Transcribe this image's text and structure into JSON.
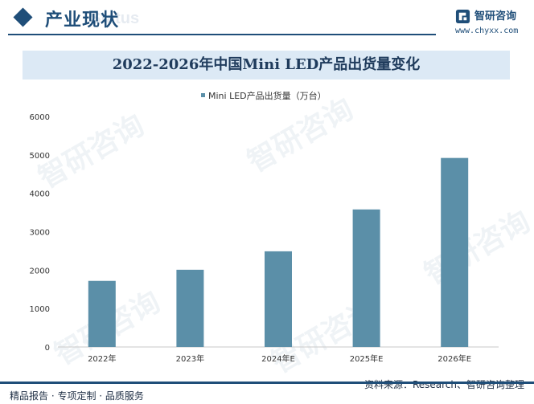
{
  "header": {
    "title": "产业现状",
    "bg_text": "Status",
    "logo_name": "智研咨询",
    "logo_url": "www.chyxx.com"
  },
  "watermark_text": "智研咨询",
  "colors": {
    "brand": "#1f4e79",
    "bar": "#5b8fa8",
    "title_bg": "#dce9f5"
  },
  "chart_data": {
    "type": "bar",
    "title": "2022-2026年中国Mini LED产品出货量变化",
    "legend_label": "Mini LED产品出货量（万台）",
    "legend_position": "top-center",
    "categories": [
      "2022年",
      "2023年",
      "2024年E",
      "2025年E",
      "2026年E"
    ],
    "series": [
      {
        "name": "Mini LED产品出货量（万台）",
        "values": [
          1720,
          2010,
          2490,
          3580,
          4920
        ]
      }
    ],
    "ylim": [
      0,
      6000
    ],
    "yticks": [
      0,
      1000,
      2000,
      3000,
      4000,
      5000,
      6000
    ],
    "xlabel": "",
    "ylabel": "",
    "grid": false
  },
  "footer": {
    "left": "精品报告 · 专项定制 · 品质服务",
    "source": "资料来源：Research、智研咨询整理"
  }
}
